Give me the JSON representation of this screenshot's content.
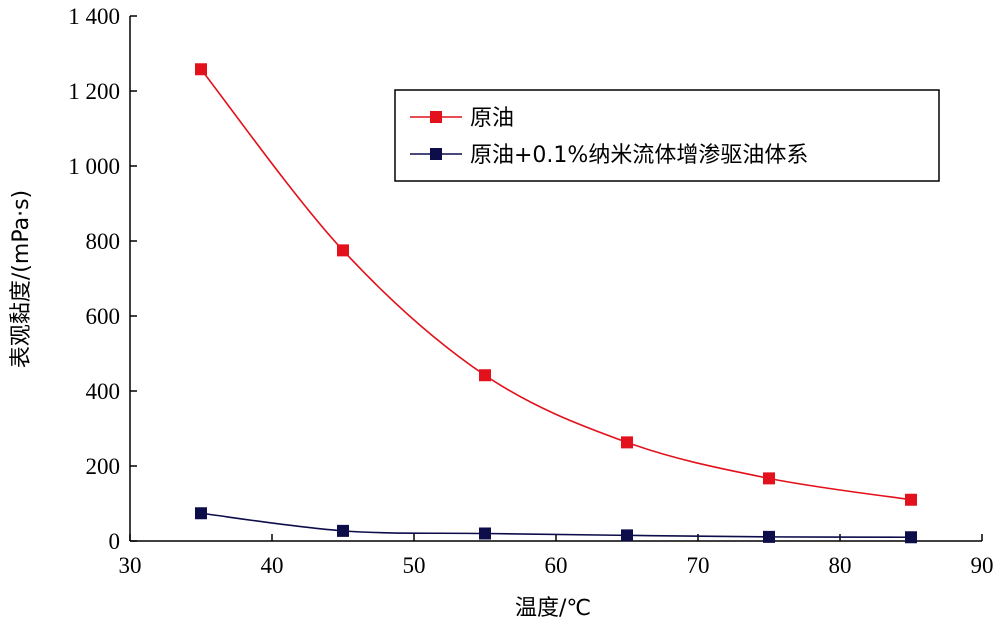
{
  "chart_data": {
    "type": "line",
    "xlabel": "温度/℃",
    "ylabel": "表观黏度/(mPa·s)",
    "xlim": [
      30,
      90
    ],
    "ylim": [
      0,
      1400
    ],
    "x_ticks": [
      30,
      40,
      50,
      60,
      70,
      80,
      90
    ],
    "y_ticks": [
      0,
      200,
      400,
      600,
      800,
      1000,
      1200,
      1400
    ],
    "x_tick_labels": [
      "30",
      "40",
      "50",
      "60",
      "70",
      "80",
      "90"
    ],
    "y_tick_labels": [
      "0",
      "200",
      "400",
      "600",
      "800",
      "1 000",
      "1 200",
      "1 400"
    ],
    "grid": false,
    "legend_position": "top-right",
    "smooth": true,
    "marker": "square",
    "x": [
      35,
      45,
      55,
      65,
      75,
      85
    ],
    "series": [
      {
        "name": "原油",
        "color": "#e3111b",
        "values": [
          1258,
          775,
          442,
          263,
          167,
          110
        ]
      },
      {
        "name": "原油+0.1%纳米流体增渗驱油体系",
        "color": "#0d0d4a",
        "values": [
          74,
          27,
          20,
          15,
          11,
          10
        ]
      }
    ]
  }
}
